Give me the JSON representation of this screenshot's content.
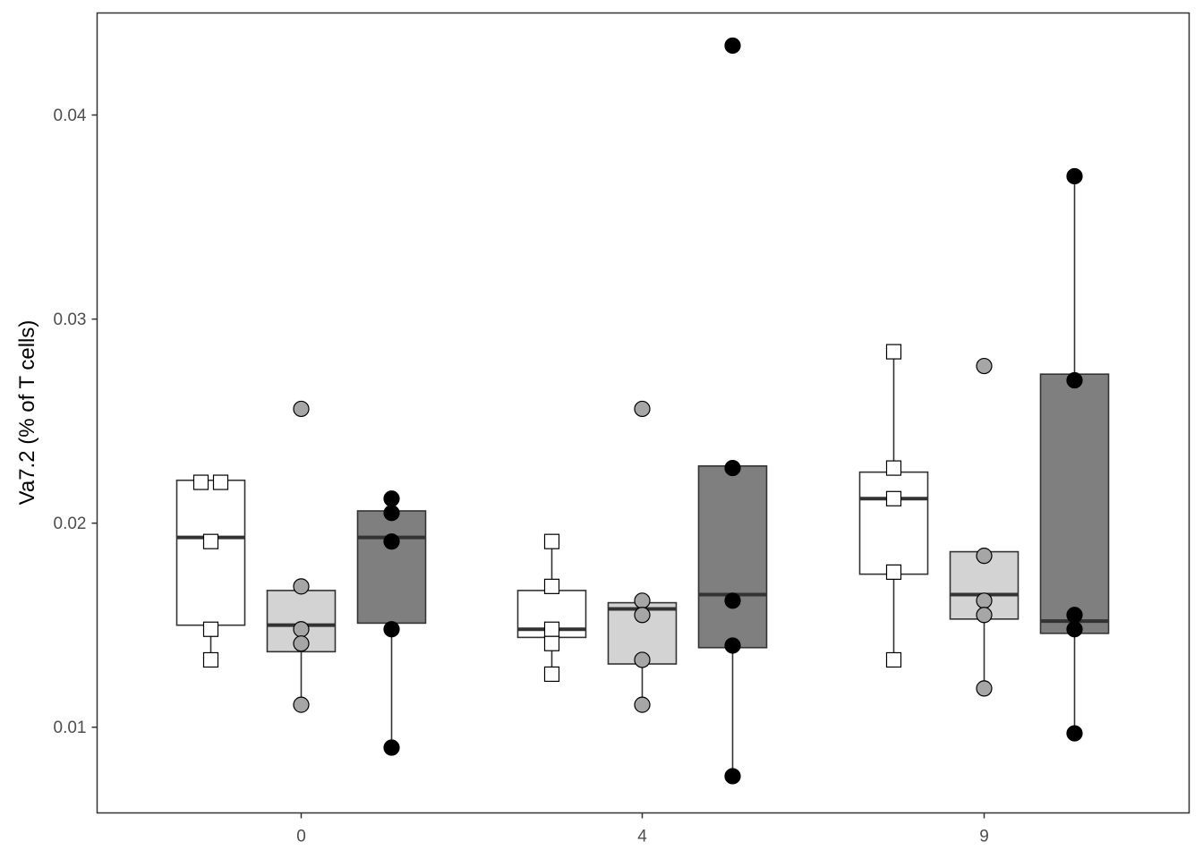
{
  "chart_data": {
    "type": "box",
    "title": "",
    "xlabel": "",
    "ylabel": "Va7.2 (% of T cells)",
    "categories": [
      "0",
      "4",
      "9"
    ],
    "ylim": [
      0.0058,
      0.045
    ],
    "yticks": [
      0.01,
      0.02,
      0.03,
      0.04
    ],
    "ytick_labels": [
      "0.01",
      "0.02",
      "0.03",
      "0.04"
    ],
    "grid": false,
    "series": [
      {
        "fill": "#ffffff",
        "marker": "square",
        "marker_fill": "#ffffff",
        "groups": [
          {
            "category": "0",
            "q1": 0.015,
            "median": 0.0193,
            "q3": 0.0221,
            "whisker_low": 0.0133,
            "whisker_high": 0.0221,
            "points": [
              0.022,
              0.022,
              0.0191,
              0.0148,
              0.0133
            ]
          },
          {
            "category": "4",
            "q1": 0.0144,
            "median": 0.0148,
            "q3": 0.0167,
            "whisker_low": 0.0126,
            "whisker_high": 0.0191,
            "points": [
              0.0191,
              0.0169,
              0.0148,
              0.0141,
              0.0126
            ]
          },
          {
            "category": "9",
            "q1": 0.0175,
            "median": 0.0212,
            "q3": 0.0225,
            "whisker_low": 0.0133,
            "whisker_high": 0.0284,
            "points": [
              0.0284,
              0.0227,
              0.0212,
              0.0176,
              0.0133
            ]
          }
        ]
      },
      {
        "fill": "#d3d3d3",
        "marker": "circle",
        "marker_fill": "#a6a6a6",
        "groups": [
          {
            "category": "0",
            "q1": 0.0137,
            "median": 0.015,
            "q3": 0.0167,
            "whisker_low": 0.0111,
            "whisker_high": 0.0167,
            "points": [
              0.0256,
              0.0169,
              0.0148,
              0.0141,
              0.0111
            ]
          },
          {
            "category": "4",
            "q1": 0.0131,
            "median": 0.0158,
            "q3": 0.0161,
            "whisker_low": 0.0111,
            "whisker_high": 0.0161,
            "points": [
              0.0256,
              0.0162,
              0.0155,
              0.0133,
              0.0111
            ]
          },
          {
            "category": "9",
            "q1": 0.0153,
            "median": 0.0165,
            "q3": 0.0186,
            "whisker_low": 0.0119,
            "whisker_high": 0.0186,
            "points": [
              0.0277,
              0.0184,
              0.0162,
              0.0155,
              0.0119
            ]
          }
        ]
      },
      {
        "fill": "#7f7f7f",
        "marker": "circle",
        "marker_fill": "#000000",
        "groups": [
          {
            "category": "0",
            "q1": 0.0151,
            "median": 0.0193,
            "q3": 0.0206,
            "whisker_low": 0.009,
            "whisker_high": 0.0206,
            "points": [
              0.0212,
              0.0205,
              0.0191,
              0.0148,
              0.009
            ]
          },
          {
            "category": "4",
            "q1": 0.0139,
            "median": 0.0165,
            "q3": 0.0228,
            "whisker_low": 0.0076,
            "whisker_high": 0.0228,
            "points": [
              0.0434,
              0.0227,
              0.0162,
              0.014,
              0.0076
            ]
          },
          {
            "category": "9",
            "q1": 0.0146,
            "median": 0.0152,
            "q3": 0.0273,
            "whisker_low": 0.0097,
            "whisker_high": 0.037,
            "points": [
              0.037,
              0.027,
              0.0155,
              0.0148,
              0.0097
            ]
          }
        ]
      }
    ]
  }
}
